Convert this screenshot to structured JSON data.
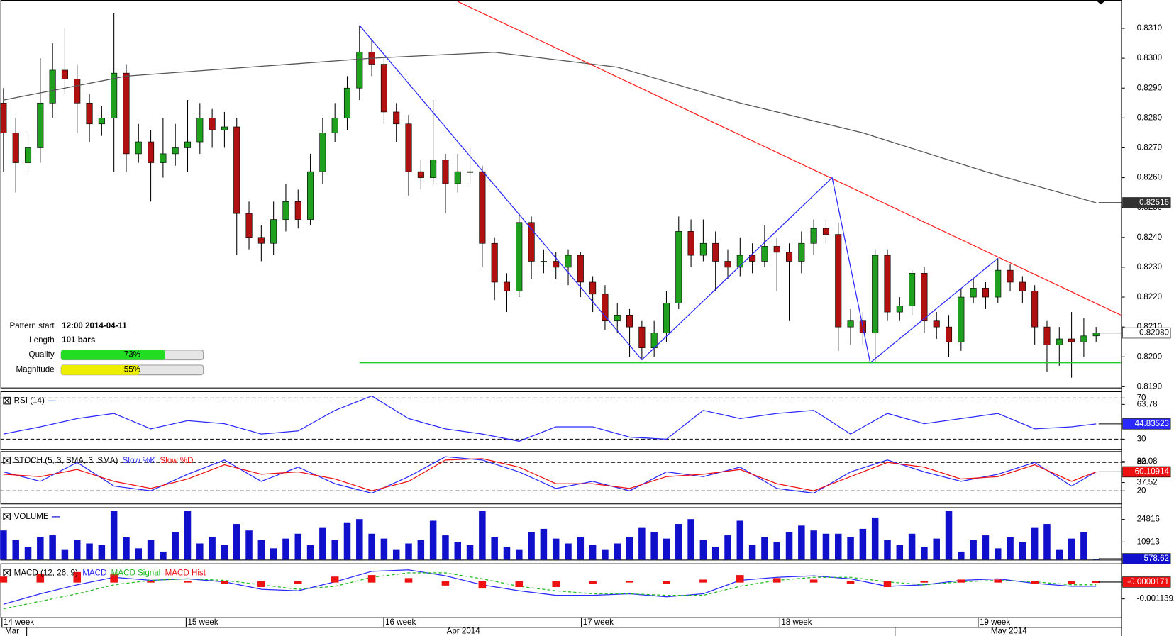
{
  "chart_data": [
    {
      "type": "candlestick",
      "ylim": [
        0.81897,
        0.83195
      ],
      "yticks": [
        {
          "value": 0.819,
          "label": "0.8190"
        },
        {
          "value": 0.82,
          "label": "0.8200"
        },
        {
          "value": 0.821,
          "label": "0.8210"
        },
        {
          "value": 0.822,
          "label": "0.8220"
        },
        {
          "value": 0.823,
          "label": "0.8230"
        },
        {
          "value": 0.824,
          "label": "0.8240"
        },
        {
          "value": 0.825,
          "label": "0.8250"
        },
        {
          "value": 0.826,
          "label": "0.8260"
        },
        {
          "value": 0.827,
          "label": "0.8270"
        },
        {
          "value": 0.828,
          "label": "0.8280"
        },
        {
          "value": 0.829,
          "label": "0.8290"
        },
        {
          "value": 0.83,
          "label": "0.8300"
        },
        {
          "value": 0.831,
          "label": "0.8310"
        }
      ],
      "up_color": "#1fa01f",
      "down_color": "#b01010",
      "ohlc": [
        [
          0.8285,
          0.829,
          0.8262,
          0.8275
        ],
        [
          0.8275,
          0.828,
          0.8255,
          0.8265
        ],
        [
          0.8265,
          0.8275,
          0.8262,
          0.827
        ],
        [
          0.827,
          0.83,
          0.8265,
          0.8285
        ],
        [
          0.8285,
          0.8305,
          0.828,
          0.8296
        ],
        [
          0.8296,
          0.831,
          0.8288,
          0.8293
        ],
        [
          0.8293,
          0.8298,
          0.8275,
          0.8285
        ],
        [
          0.8285,
          0.8288,
          0.8272,
          0.8278
        ],
        [
          0.8278,
          0.8284,
          0.8274,
          0.828
        ],
        [
          0.828,
          0.8315,
          0.8262,
          0.8295
        ],
        [
          0.8295,
          0.8298,
          0.8262,
          0.8268
        ],
        [
          0.8268,
          0.8278,
          0.8265,
          0.8272
        ],
        [
          0.8272,
          0.8276,
          0.8252,
          0.8265
        ],
        [
          0.8265,
          0.828,
          0.826,
          0.8268
        ],
        [
          0.8268,
          0.8278,
          0.8264,
          0.827
        ],
        [
          0.827,
          0.8286,
          0.8262,
          0.8272
        ],
        [
          0.8272,
          0.8285,
          0.8268,
          0.828
        ],
        [
          0.828,
          0.8283,
          0.827,
          0.8276
        ],
        [
          0.8276,
          0.8282,
          0.827,
          0.8277
        ],
        [
          0.8277,
          0.828,
          0.8234,
          0.8248
        ],
        [
          0.8248,
          0.8252,
          0.8236,
          0.824
        ],
        [
          0.824,
          0.8244,
          0.8232,
          0.8238
        ],
        [
          0.8238,
          0.8252,
          0.8234,
          0.8246
        ],
        [
          0.8246,
          0.8258,
          0.8242,
          0.8252
        ],
        [
          0.8252,
          0.8256,
          0.8243,
          0.8246
        ],
        [
          0.8246,
          0.8268,
          0.8244,
          0.8262
        ],
        [
          0.8262,
          0.828,
          0.8258,
          0.8275
        ],
        [
          0.8275,
          0.8285,
          0.8272,
          0.828
        ],
        [
          0.828,
          0.8294,
          0.8276,
          0.829
        ],
        [
          0.829,
          0.8311,
          0.8286,
          0.8302
        ],
        [
          0.8302,
          0.8306,
          0.8294,
          0.8298
        ],
        [
          0.8298,
          0.83,
          0.8278,
          0.8282
        ],
        [
          0.8282,
          0.8285,
          0.8272,
          0.8278
        ],
        [
          0.8278,
          0.8281,
          0.8254,
          0.8262
        ],
        [
          0.8262,
          0.8266,
          0.8256,
          0.826
        ],
        [
          0.826,
          0.8286,
          0.8258,
          0.8266
        ],
        [
          0.8266,
          0.8268,
          0.8248,
          0.8258
        ],
        [
          0.8258,
          0.8268,
          0.8255,
          0.8262
        ],
        [
          0.8262,
          0.827,
          0.8258,
          0.8262
        ],
        [
          0.8262,
          0.8264,
          0.823,
          0.8238
        ],
        [
          0.8238,
          0.824,
          0.8219,
          0.8225
        ],
        [
          0.8225,
          0.8228,
          0.8215,
          0.8222
        ],
        [
          0.8222,
          0.8248,
          0.822,
          0.8245
        ],
        [
          0.8245,
          0.8247,
          0.8226,
          0.8232
        ],
        [
          0.8232,
          0.8236,
          0.8228,
          0.8232
        ],
        [
          0.8232,
          0.8235,
          0.8226,
          0.823
        ],
        [
          0.823,
          0.8236,
          0.8224,
          0.8234
        ],
        [
          0.8234,
          0.8235,
          0.822,
          0.8225
        ],
        [
          0.8225,
          0.8227,
          0.8215,
          0.8221
        ],
        [
          0.8221,
          0.8224,
          0.8209,
          0.8212
        ],
        [
          0.8212,
          0.8218,
          0.8208,
          0.8214
        ],
        [
          0.8214,
          0.8216,
          0.82,
          0.821
        ],
        [
          0.821,
          0.8212,
          0.8199,
          0.8203
        ],
        [
          0.8203,
          0.8212,
          0.82,
          0.8208
        ],
        [
          0.8208,
          0.8222,
          0.8205,
          0.8218
        ],
        [
          0.8218,
          0.8247,
          0.8216,
          0.8242
        ],
        [
          0.8242,
          0.8246,
          0.823,
          0.8234
        ],
        [
          0.8234,
          0.8246,
          0.8232,
          0.8238
        ],
        [
          0.8238,
          0.8242,
          0.8222,
          0.8232
        ],
        [
          0.8232,
          0.8236,
          0.8226,
          0.823
        ],
        [
          0.823,
          0.824,
          0.8227,
          0.8234
        ],
        [
          0.8234,
          0.8238,
          0.8228,
          0.8232
        ],
        [
          0.8232,
          0.8244,
          0.823,
          0.8237
        ],
        [
          0.8237,
          0.824,
          0.8222,
          0.8235
        ],
        [
          0.8235,
          0.8238,
          0.8212,
          0.8232
        ],
        [
          0.8232,
          0.8242,
          0.8228,
          0.8238
        ],
        [
          0.8238,
          0.8246,
          0.8234,
          0.8243
        ],
        [
          0.8243,
          0.8246,
          0.8238,
          0.8241
        ],
        [
          0.8241,
          0.8245,
          0.8202,
          0.821
        ],
        [
          0.821,
          0.8216,
          0.8204,
          0.8212
        ],
        [
          0.8212,
          0.8215,
          0.8204,
          0.8208
        ],
        [
          0.8208,
          0.8236,
          0.8198,
          0.8234
        ],
        [
          0.8234,
          0.8236,
          0.8212,
          0.8215
        ],
        [
          0.8215,
          0.822,
          0.8212,
          0.8217
        ],
        [
          0.8217,
          0.8229,
          0.8214,
          0.8228
        ],
        [
          0.8228,
          0.823,
          0.8208,
          0.8212
        ],
        [
          0.8212,
          0.8215,
          0.8206,
          0.821
        ],
        [
          0.821,
          0.8214,
          0.82,
          0.8205
        ],
        [
          0.8205,
          0.8223,
          0.8202,
          0.822
        ],
        [
          0.822,
          0.8226,
          0.8218,
          0.8223
        ],
        [
          0.8223,
          0.8225,
          0.8216,
          0.822
        ],
        [
          0.822,
          0.8233,
          0.8218,
          0.8229
        ],
        [
          0.8229,
          0.8231,
          0.8222,
          0.8225
        ],
        [
          0.8225,
          0.8227,
          0.8218,
          0.8222
        ],
        [
          0.8222,
          0.8224,
          0.8204,
          0.821
        ],
        [
          0.821,
          0.8212,
          0.8195,
          0.8204
        ],
        [
          0.8204,
          0.821,
          0.8197,
          0.8206
        ],
        [
          0.8206,
          0.8215,
          0.8193,
          0.8205
        ],
        [
          0.8205,
          0.8213,
          0.82,
          0.8207
        ],
        [
          0.8207,
          0.821,
          0.8205,
          0.8208
        ]
      ],
      "series": [
        {
          "color": "#555555",
          "x": [
            0,
            10,
            20,
            30,
            40,
            50,
            60,
            70,
            80,
            89
          ],
          "values": [
            0.8286,
            0.8294,
            0.8297,
            0.83,
            0.8302,
            0.8297,
            0.8285,
            0.8275,
            0.8262,
            0.82516
          ]
        },
        {
          "color": "#ff2020",
          "x": [
            37,
            91
          ],
          "values": [
            0.8319,
            0.8214
          ]
        },
        {
          "color": "#2a2aff",
          "x": [
            29,
            52,
            67.5,
            70.6,
            81
          ],
          "values": [
            0.8311,
            0.8199,
            0.826,
            0.8198,
            0.8233
          ]
        },
        {
          "color": "#22cc22",
          "x": [
            29,
            91
          ],
          "values": [
            0.8198,
            0.8198
          ]
        }
      ],
      "markers": [
        {
          "value": 0.82516,
          "label": "0.82516",
          "color": "#333333"
        },
        {
          "value": 0.8208,
          "label": "0.82080",
          "color": "#ffffff"
        }
      ]
    },
    {
      "type": "line",
      "title": "RSI (14)",
      "title_color": "#2a2aff",
      "ylim": [
        20.5,
        76.5
      ],
      "yticks": [
        30,
        63.78,
        70
      ],
      "levels": [
        70,
        30
      ],
      "x": [
        0,
        3,
        6,
        9,
        12,
        15,
        18,
        21,
        24,
        27,
        30,
        33,
        36,
        39,
        42,
        45,
        48,
        51,
        54,
        57,
        60,
        63,
        66,
        69,
        72,
        75,
        78,
        81,
        84,
        87,
        89
      ],
      "series": [
        {
          "color": "#2a2aff",
          "values": [
            35,
            42,
            50,
            55,
            40,
            48,
            45,
            35,
            38,
            58,
            72,
            50,
            40,
            35,
            28,
            42,
            42,
            32,
            30,
            58,
            50,
            55,
            58,
            35,
            55,
            45,
            50,
            55,
            40,
            42,
            44.83523
          ]
        }
      ],
      "markers": [
        {
          "value": 44.83523,
          "label": "44.83523",
          "color": "#2a2aff"
        }
      ]
    },
    {
      "type": "line",
      "title": "STOCH (5, 3, SMA, 3, SMA)",
      "ylim": [
        -6.9,
        103.7
      ],
      "yticks": [
        20,
        37.52,
        80,
        82.08
      ],
      "levels": [
        80,
        20
      ],
      "x": [
        0,
        3,
        6,
        9,
        12,
        15,
        18,
        21,
        24,
        27,
        30,
        33,
        36,
        39,
        42,
        45,
        48,
        51,
        54,
        57,
        60,
        63,
        66,
        69,
        72,
        75,
        78,
        81,
        84,
        87,
        89
      ],
      "series": [
        {
          "name": "Slow %K",
          "color": "#2a2aff",
          "values": [
            60,
            40,
            80,
            30,
            20,
            55,
            85,
            40,
            70,
            35,
            15,
            50,
            92,
            85,
            60,
            25,
            40,
            20,
            60,
            50,
            70,
            25,
            15,
            60,
            85,
            60,
            40,
            55,
            80,
            30,
            60.10914
          ]
        },
        {
          "name": "Slow %D",
          "color": "#ee1111",
          "values": [
            55,
            50,
            65,
            40,
            25,
            45,
            75,
            55,
            60,
            45,
            20,
            40,
            85,
            88,
            70,
            35,
            35,
            25,
            50,
            55,
            65,
            35,
            20,
            50,
            80,
            70,
            45,
            50,
            75,
            40,
            60
          ]
        }
      ],
      "markers": [
        {
          "value": 60.10914,
          "label": "60.10914",
          "color": "#ee1111"
        }
      ]
    },
    {
      "type": "bar",
      "title": "VOLUME",
      "title_color": "#1010cc",
      "ylim": [
        0,
        32300
      ],
      "yticks": [
        10913,
        24816
      ],
      "color": "#1010cc",
      "values": [
        18000,
        12000,
        8000,
        14000,
        15000,
        6000,
        12000,
        10000,
        9000,
        30000,
        14000,
        7000,
        12000,
        5000,
        17000,
        30000,
        10000,
        14000,
        9000,
        22000,
        18000,
        12000,
        7000,
        13000,
        16000,
        9000,
        20000,
        12000,
        23000,
        25000,
        16000,
        13000,
        6000,
        10000,
        12000,
        24000,
        15000,
        11000,
        9000,
        30000,
        14000,
        8000,
        6000,
        17000,
        19000,
        13000,
        10000,
        14000,
        9000,
        6000,
        10000,
        14000,
        20000,
        17000,
        13000,
        22000,
        25000,
        12000,
        8000,
        15000,
        24000,
        9000,
        14000,
        11000,
        17000,
        21000,
        18000,
        16000,
        16000,
        14000,
        19000,
        26000,
        12000,
        9000,
        16000,
        8000,
        13000,
        30000,
        5000,
        12000,
        15000,
        7000,
        14000,
        11000,
        20000,
        22000,
        6000,
        13000,
        17000,
        578.62
      ],
      "markers": [
        {
          "value": 578.62,
          "label": "578.62",
          "color": "#1010cc"
        }
      ]
    },
    {
      "type": "line",
      "title": "MACD (12, 26, 9)",
      "ylim": [
        -0.00237,
        0.00123
      ],
      "yticks": [
        -0.0011392
      ],
      "x": [
        0,
        3,
        6,
        9,
        12,
        15,
        18,
        21,
        24,
        27,
        30,
        33,
        36,
        39,
        42,
        45,
        48,
        51,
        54,
        57,
        60,
        63,
        66,
        69,
        72,
        75,
        78,
        81,
        84,
        87,
        89
      ],
      "series": [
        {
          "name": "MACD",
          "color": "#2a2aff",
          "values": [
            -0.0015,
            -0.0008,
            -0.0002,
            0.0003,
            0.0001,
            0.0002,
            0,
            -0.0005,
            -0.0006,
            0,
            0.0007,
            0.0008,
            0.0004,
            -0.0002,
            -0.0006,
            -0.0009,
            -0.0009,
            -0.0008,
            -0.001,
            -0.0008,
            0.0001,
            0.0003,
            0.0004,
            0.0002,
            -0.0003,
            -0.0002,
            0.0001,
            0.0002,
            -0.0001,
            -0.0003,
            -0.0003
          ]
        },
        {
          "name": "MACD Signal",
          "color": "#22bb22",
          "dash": true,
          "values": [
            -0.0018,
            -0.0013,
            -0.0008,
            -0.0002,
            0.0001,
            0.0002,
            0.0001,
            -0.0002,
            -0.0005,
            -0.0003,
            0.0003,
            0.0006,
            0.0006,
            0.0002,
            -0.0003,
            -0.0006,
            -0.0008,
            -0.0008,
            -0.0009,
            -0.0009,
            -0.0003,
            0.0001,
            0.0003,
            0.0003,
            0,
            -0.0002,
            0,
            0.0001,
            0,
            -0.0002,
            -0.0002
          ]
        },
        {
          "name": "MACD Hist",
          "color": "#ee1111",
          "hist": true,
          "values": [
            0.0003,
            0.0005,
            0.0006,
            0.0005,
            0,
            0,
            -0.0001,
            -0.0003,
            -0.0001,
            0.0003,
            0.0004,
            0.0002,
            -0.0002,
            -0.0004,
            -0.0003,
            -0.0003,
            -0.0001,
            0,
            -0.0001,
            0.0001,
            0.0004,
            0.0002,
            0.0001,
            -0.0001,
            -0.0003,
            0,
            0.0001,
            0.0001,
            -0.0001,
            -0.0001,
            -1.71e-05
          ]
        }
      ],
      "markers": [
        {
          "value": -1.71e-05,
          "label": "-0.0000171",
          "color": "#ee1111"
        }
      ]
    }
  ],
  "time_axis": {
    "weeks": [
      "14 week",
      "15 week",
      "16 week",
      "17 week",
      "18 week",
      "19 week"
    ],
    "months": [
      "Mar",
      "Apr 2014",
      "May 2014"
    ]
  },
  "pattern": {
    "start_label": "Pattern start",
    "start": "12:00 2014-04-11",
    "length_label": "Length",
    "length": "101 bars",
    "quality_label": "Quality",
    "quality": 73,
    "quality_text": "73%",
    "quality_color": "#22dd22",
    "magnitude_label": "Magnitude",
    "magnitude": 55,
    "magnitude_text": "55%",
    "magnitude_color": "#eeee00"
  }
}
